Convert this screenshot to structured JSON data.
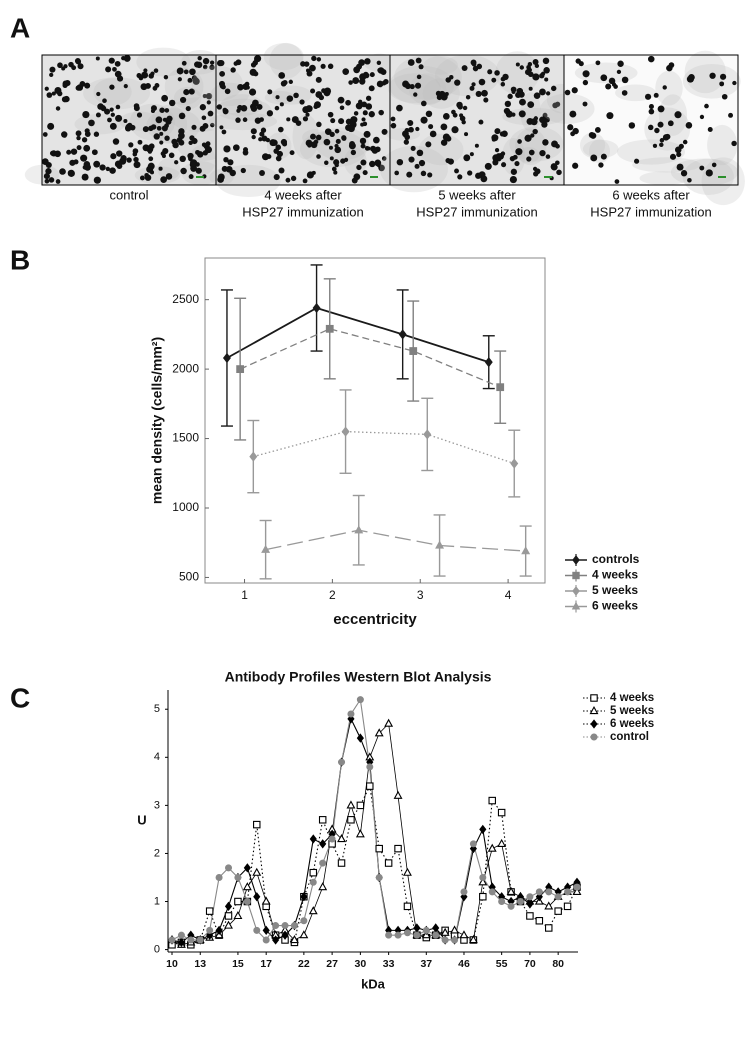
{
  "panel_a": {
    "panel_label": "A",
    "captions": [
      [
        "control"
      ],
      [
        "4 weeks after",
        "HSP27 immunization"
      ],
      [
        "5 weeks after",
        "HSP27 immunization"
      ],
      [
        "6 weeks after",
        "HSP27 immunization"
      ]
    ]
  },
  "chart_data": [
    {
      "type": "errorbar-line",
      "panel_label": "B",
      "x_label": "eccentricity",
      "y_label": "mean density (cells/mm²)",
      "xlim": [
        0.55,
        4.42
      ],
      "xticks": [
        1,
        2,
        3,
        4
      ],
      "ylim": [
        460,
        2800
      ],
      "yticks": [
        500,
        1000,
        1500,
        2000,
        2500
      ],
      "legend": "outside-bottom-right",
      "series": [
        {
          "name": "controls",
          "color": "#1a1a1a",
          "marker": "diamond",
          "line_style": "solid",
          "x": [
            0.8,
            1.82,
            2.8,
            3.78
          ],
          "values": [
            2080,
            2440,
            2250,
            2050
          ],
          "errors": [
            490,
            310,
            320,
            190
          ]
        },
        {
          "name": "4 weeks",
          "color": "#808080",
          "marker": "square",
          "line_style": "dashed",
          "x": [
            0.95,
            1.97,
            2.92,
            3.91
          ],
          "values": [
            2000,
            2290,
            2130,
            1870
          ],
          "errors": [
            510,
            360,
            360,
            260
          ]
        },
        {
          "name": "5 weeks",
          "color": "#999999",
          "marker": "diamond",
          "line_style": "dotted",
          "x": [
            1.1,
            2.15,
            3.08,
            4.07
          ],
          "values": [
            1370,
            1550,
            1530,
            1320
          ],
          "errors": [
            260,
            300,
            260,
            240
          ]
        },
        {
          "name": "6 weeks",
          "color": "#999999",
          "marker": "triangle",
          "line_style": "longdash",
          "x": [
            1.24,
            2.3,
            3.22,
            4.2
          ],
          "values": [
            700,
            840,
            730,
            690
          ],
          "errors": [
            210,
            250,
            220,
            180
          ]
        }
      ]
    },
    {
      "type": "line",
      "panel_label": "C",
      "title": "Antibody Profiles Western Blot Analysis",
      "x_label": "kDa",
      "y_label": "U",
      "categories": [
        "10",
        null,
        null,
        "13",
        null,
        null,
        null,
        "15",
        null,
        null,
        "17",
        null,
        null,
        null,
        "22",
        null,
        null,
        "27",
        null,
        null,
        "30",
        null,
        null,
        "33",
        null,
        null,
        null,
        "37",
        null,
        null,
        null,
        "46",
        null,
        null,
        null,
        "55",
        null,
        null,
        "70",
        null,
        null,
        "80",
        null,
        null
      ],
      "ylim": [
        -0.05,
        5.4
      ],
      "yticks": [
        0,
        1,
        2,
        3,
        4,
        5
      ],
      "legend": "outside-top-right",
      "series": [
        {
          "name": "4 weeks",
          "color": "#000000",
          "marker": "square-open",
          "line_style": "dotted",
          "values": [
            0.1,
            0.15,
            0.1,
            0.2,
            0.8,
            0.3,
            0.7,
            1.0,
            1.0,
            2.6,
            0.9,
            0.3,
            0.2,
            0.15,
            1.1,
            1.6,
            2.7,
            2.2,
            1.8,
            2.7,
            3.0,
            3.4,
            2.1,
            1.8,
            2.1,
            0.9,
            0.3,
            0.25,
            0.3,
            0.4,
            0.3,
            0.2,
            0.2,
            1.1,
            3.1,
            2.85,
            1.2,
            1.0,
            0.7,
            0.6,
            0.45,
            0.8,
            0.9,
            1.3
          ]
        },
        {
          "name": "5 weeks",
          "color": "#000000",
          "marker": "triangle-open",
          "line_style": "thin",
          "values": [
            0.2,
            0.1,
            0.15,
            0.2,
            0.25,
            0.3,
            0.5,
            0.7,
            1.3,
            1.6,
            1.0,
            0.3,
            0.4,
            0.2,
            0.3,
            0.8,
            1.3,
            2.5,
            2.3,
            3.0,
            2.4,
            4.0,
            4.5,
            4.7,
            3.2,
            1.6,
            0.3,
            0.3,
            0.3,
            0.35,
            0.4,
            0.3,
            0.2,
            1.4,
            2.1,
            2.2,
            1.2,
            1.1,
            1.0,
            1.0,
            0.9,
            1.1,
            1.2,
            1.2
          ]
        },
        {
          "name": "6 weeks",
          "color": "#000000",
          "marker": "diamond",
          "line_style": "solid",
          "values": [
            0.2,
            0.15,
            0.3,
            0.2,
            0.3,
            0.4,
            0.9,
            1.5,
            1.7,
            1.1,
            0.4,
            0.2,
            0.3,
            0.5,
            1.1,
            2.3,
            2.2,
            2.4,
            3.9,
            4.8,
            4.4,
            3.9,
            1.5,
            0.4,
            0.4,
            0.4,
            0.45,
            0.4,
            0.45,
            0.2,
            0.2,
            1.1,
            2.1,
            2.5,
            1.3,
            1.1,
            1.0,
            1.1,
            0.95,
            1.1,
            1.3,
            1.2,
            1.3,
            1.4
          ]
        },
        {
          "name": "control",
          "color": "#888888",
          "marker": "circle",
          "line_style": "solid",
          "values": [
            0.2,
            0.3,
            0.2,
            0.2,
            0.4,
            1.5,
            1.7,
            1.5,
            1.0,
            0.4,
            0.2,
            0.5,
            0.5,
            0.5,
            0.6,
            1.4,
            1.8,
            2.3,
            3.9,
            4.9,
            5.2,
            3.8,
            1.5,
            0.3,
            0.3,
            0.35,
            0.3,
            0.4,
            0.3,
            0.2,
            0.2,
            1.2,
            2.2,
            1.5,
            1.2,
            1.0,
            0.9,
            1.0,
            1.1,
            1.2,
            1.2,
            1.1,
            1.2,
            1.3
          ]
        }
      ]
    }
  ]
}
